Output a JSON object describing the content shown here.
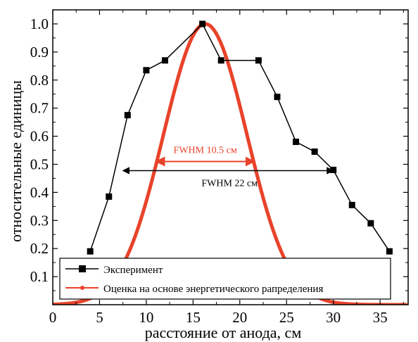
{
  "chart_data": {
    "type": "line",
    "title": "",
    "xlabel": "расстояние от анода, см",
    "ylabel": "относительные единицы",
    "xlim": [
      0,
      38
    ],
    "ylim": [
      0,
      1.05
    ],
    "xticks": [
      0,
      5,
      10,
      15,
      20,
      25,
      30,
      35
    ],
    "yticks": [
      0.1,
      0.2,
      0.3,
      0.4,
      0.5,
      0.6,
      0.7,
      0.8,
      0.9,
      1.0
    ],
    "xtick_labels": [
      "0",
      "5",
      "10",
      "15",
      "20",
      "25",
      "30",
      "35"
    ],
    "ytick_labels": [
      "0.1",
      "0.2",
      "0.3",
      "0.4",
      "0.5",
      "0.6",
      "0.7",
      "0.8",
      "0.9",
      "1.0"
    ],
    "grid": false,
    "legend_position": "bottom-left",
    "series": [
      {
        "name": "Эксперимент",
        "color": "#000000",
        "marker": "square",
        "x": [
          4,
          6,
          8,
          10,
          12,
          16,
          18,
          22,
          24,
          26,
          28,
          30,
          32,
          34,
          36
        ],
        "y": [
          0.19,
          0.385,
          0.675,
          0.835,
          0.87,
          1.0,
          0.87,
          0.87,
          0.74,
          0.58,
          0.545,
          0.48,
          0.355,
          0.29,
          0.19
        ]
      },
      {
        "name": "Оценка на основе энергетического рапределения",
        "color": "#e8432a",
        "marker": "none",
        "curve": "gaussian",
        "peak_x": 16.3,
        "peak_y": 1.0,
        "fwhm": 10.5
      }
    ],
    "annotations": [
      {
        "text": "FWHM 10.5 см",
        "color": "#e8432a",
        "x_from": 11.05,
        "x_to": 21.55,
        "y": 0.5
      },
      {
        "text": "FWHM 22 см",
        "color": "#000000",
        "x_from": 7.5,
        "x_to": 30.0,
        "y": 0.485
      }
    ]
  }
}
